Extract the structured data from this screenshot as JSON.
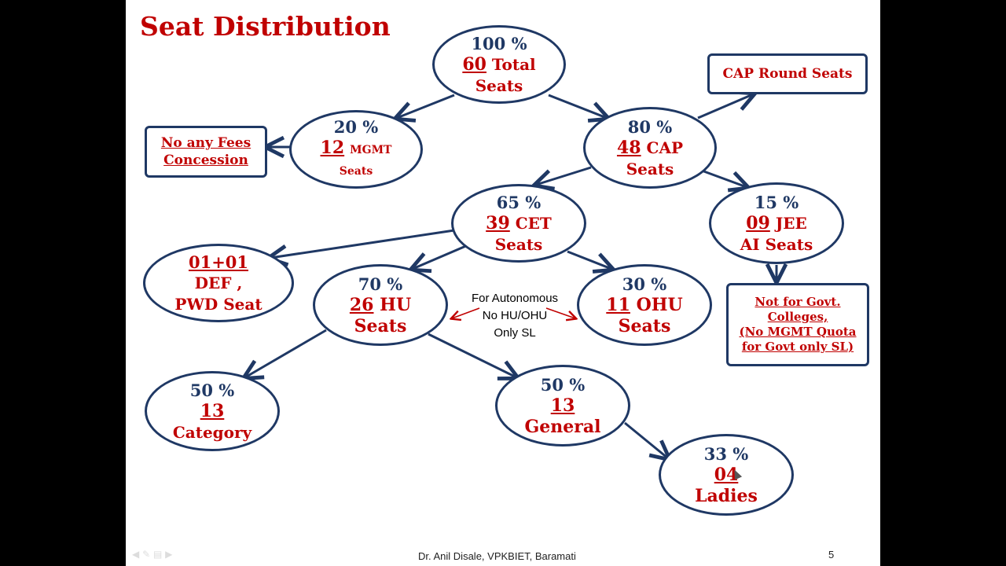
{
  "title": "Seat Distribution",
  "nodes": {
    "total": {
      "pct": "100 %",
      "num": "60",
      "text": "Total",
      "text2": "Seats"
    },
    "mgmt": {
      "pct": "20 %",
      "num": "12",
      "text": "MGMT",
      "text2": "Seats"
    },
    "cap": {
      "pct": "80 %",
      "num": "48",
      "text": "CAP",
      "text2": "Seats"
    },
    "cet": {
      "pct": "65 %",
      "num": "39",
      "text": "CET",
      "text2": "Seats"
    },
    "jee": {
      "pct": "15 %",
      "num": "09",
      "text": "JEE",
      "text2": "AI Seats"
    },
    "def": {
      "line1": "01+01",
      "line2": "DEF ,",
      "line3": "PWD Seat"
    },
    "hu": {
      "pct": "70 %",
      "num": "26",
      "text": "HU",
      "text2": "Seats"
    },
    "ohu": {
      "pct": "30 %",
      "num": "11",
      "text": "OHU",
      "text2": "Seats"
    },
    "category": {
      "pct": "50 %",
      "num": "13",
      "text2": "Category"
    },
    "general": {
      "pct": "50 %",
      "num": "13",
      "text2": "General"
    },
    "ladies": {
      "pct": "33 %",
      "num": "04",
      "text2": "Ladies"
    }
  },
  "boxes": {
    "cap_round": {
      "text": "CAP Round Seats"
    },
    "fees": {
      "line1": "No any Fees",
      "line2": "Concession"
    },
    "govt": {
      "line1": "Not for Govt.",
      "line2": "Colleges,",
      "line3": "(No MGMT Quota",
      "line4": "for Govt only SL)"
    }
  },
  "note": {
    "line1": "For Autonomous",
    "line2": "No HU/OHU",
    "line3": "Only SL"
  },
  "footer": {
    "author": "Dr. Anil Disale, VPKBIET, Baramati",
    "page": "5"
  },
  "colors": {
    "node_border": "#1F3864",
    "accent_red": "#C00000",
    "background": "#FFFFFF"
  }
}
